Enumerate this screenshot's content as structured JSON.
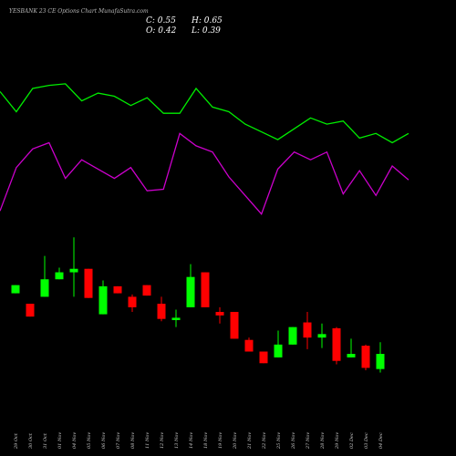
{
  "chart_data": {
    "type": "candlestick",
    "title": "YESBANK 23 CE Options  Chart MunafaSutra.com",
    "ohlc_labels": {
      "close": "C: 0.55",
      "high": "H: 0.65",
      "open": "O: 0.42",
      "low": "L: 0.39"
    },
    "categories": [
      "29 Oct",
      "30 Oct",
      "31 Oct",
      "01 Nov",
      "04 Nov",
      "05 Nov",
      "06 Nov",
      "07 Nov",
      "08 Nov",
      "11 Nov",
      "12 Nov",
      "13 Nov",
      "14 Nov",
      "18 Nov",
      "19 Nov",
      "20 Nov",
      "21 Nov",
      "22 Nov",
      "25 Nov",
      "26 Nov",
      "27 Nov",
      "28 Nov",
      "29 Nov",
      "02 Dec",
      "03 Dec",
      "04 Dec"
    ],
    "open": [
      1.07,
      0.98,
      1.04,
      1.19,
      1.25,
      1.28,
      0.89,
      1.13,
      1.04,
      1.14,
      0.98,
      0.84,
      0.95,
      1.25,
      0.91,
      0.91,
      0.67,
      0.57,
      0.52,
      0.63,
      0.82,
      0.69,
      0.77,
      0.52,
      0.62,
      0.42
    ],
    "high": [
      1.14,
      0.98,
      1.39,
      1.29,
      1.55,
      1.28,
      1.18,
      1.13,
      1.06,
      1.14,
      1.04,
      0.93,
      1.32,
      1.25,
      0.95,
      0.91,
      0.69,
      0.57,
      0.75,
      0.78,
      0.91,
      0.81,
      0.78,
      0.68,
      0.63,
      0.65
    ],
    "low": [
      1.07,
      0.87,
      1.04,
      1.19,
      1.04,
      1.03,
      0.89,
      1.07,
      0.91,
      1.05,
      0.83,
      0.78,
      0.95,
      0.95,
      0.81,
      0.68,
      0.57,
      0.47,
      0.52,
      0.63,
      0.59,
      0.6,
      0.46,
      0.52,
      0.41,
      0.39
    ],
    "close": [
      1.14,
      0.87,
      1.19,
      1.25,
      1.28,
      1.03,
      1.13,
      1.07,
      0.95,
      1.05,
      0.85,
      0.86,
      1.21,
      0.95,
      0.88,
      0.68,
      0.57,
      0.47,
      0.63,
      0.78,
      0.69,
      0.72,
      0.49,
      0.55,
      0.43,
      0.55
    ],
    "up_color": "#00ff00",
    "down_color": "#ff0000",
    "ylim": [
      0.3,
      1.63
    ],
    "lines": {
      "ylim": [
        0,
        100
      ],
      "series": [
        {
          "color": "#00ee00",
          "values": [
            88,
            75,
            90,
            92,
            93,
            82,
            87,
            85,
            79,
            84,
            74,
            74,
            90,
            78,
            75,
            67,
            62,
            57,
            64,
            71,
            67,
            69,
            58,
            61,
            55,
            61
          ]
        },
        {
          "color": "#cc00cc",
          "values": [
            11,
            39,
            51,
            55,
            32,
            44,
            38,
            32,
            39,
            24,
            25,
            61,
            53,
            49,
            33,
            21,
            9,
            38,
            49,
            44,
            49,
            22,
            37,
            21,
            40,
            31
          ]
        }
      ]
    }
  }
}
